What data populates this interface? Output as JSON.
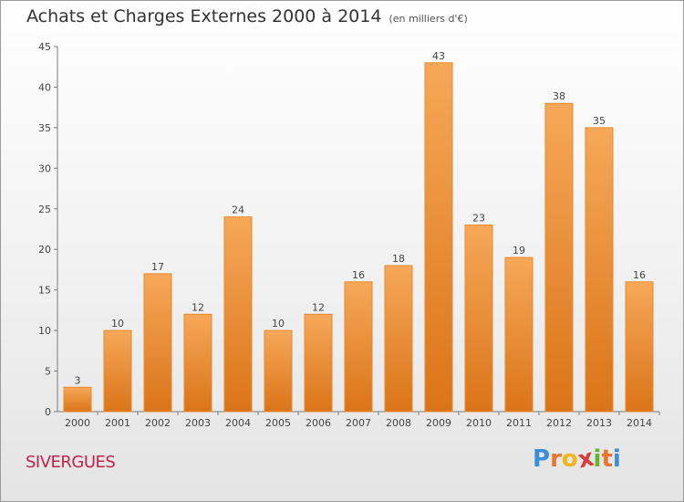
{
  "title": "Achats et Charges Externes 2000 à 2014",
  "unit": "(en milliers d'€)",
  "commune": "SIVERGUES",
  "logo": {
    "letters": [
      "P",
      "r",
      "o",
      "x",
      "i",
      "t",
      "i"
    ],
    "colors": [
      "#3b8fd4",
      "#e9762b",
      "#f2b51c",
      "#d83a3a",
      "#63b52e",
      "#e9762b",
      "#3b8fd4"
    ]
  },
  "colors": {
    "bar_top": "#f6a859",
    "bar_bottom": "#db7418",
    "bar_stroke": "#e58a2e",
    "commune": "#c0244e"
  },
  "chart_data": {
    "type": "bar",
    "categories": [
      "2000",
      "2001",
      "2002",
      "2003",
      "2004",
      "2005",
      "2006",
      "2007",
      "2008",
      "2009",
      "2010",
      "2011",
      "2012",
      "2013",
      "2014"
    ],
    "values": [
      3,
      10,
      17,
      12,
      24,
      10,
      12,
      16,
      18,
      43,
      23,
      19,
      38,
      35,
      16
    ],
    "ylim": [
      0,
      45
    ],
    "yticks": [
      0,
      5,
      10,
      15,
      20,
      25,
      30,
      35,
      40,
      45
    ],
    "title": "Achats et Charges Externes 2000 à 2014",
    "xlabel": "",
    "ylabel": "",
    "grid": false,
    "legend": "none"
  }
}
